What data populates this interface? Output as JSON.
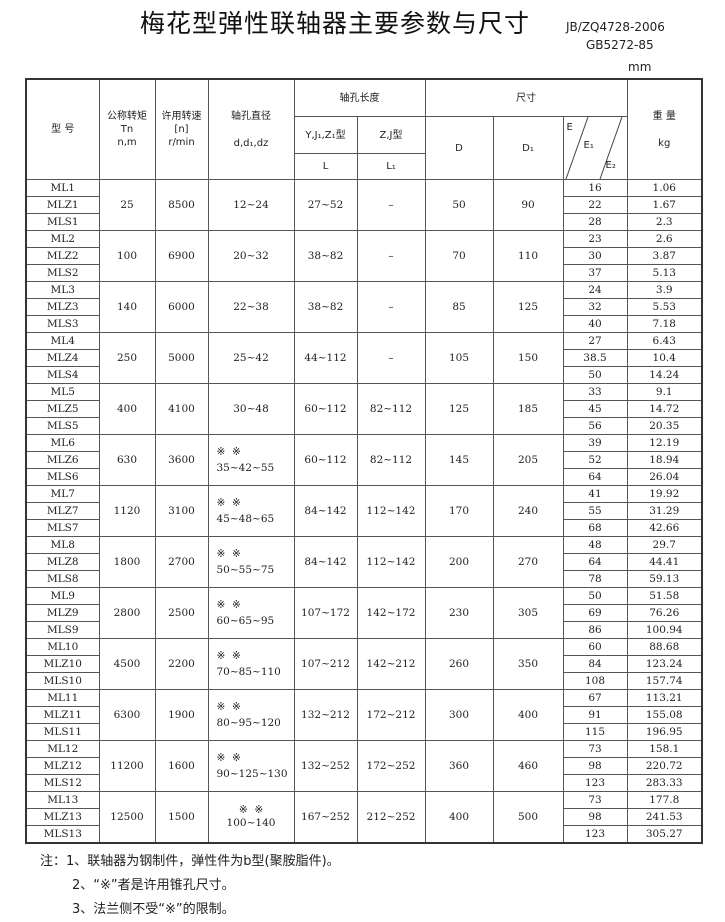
{
  "title": "梅花型弹性联轴器主要参数与尺寸",
  "standards": [
    "JB/ZQ4728-2006",
    "GB5272-85"
  ],
  "unit": "mm",
  "headers": {
    "model": "型 号",
    "torque": [
      "公称转矩",
      "Tn",
      "n,m"
    ],
    "speed": [
      "许用转速",
      "[n]",
      "r/min"
    ],
    "bore_dia": [
      "轴孔直径",
      "d,d₁,dz"
    ],
    "bore_len": "轴孔长度",
    "bore_len_y": "Y,J₁,Z₁型",
    "bore_len_z": "Z,J型",
    "L": "L",
    "L1": "L₁",
    "dims": "尺寸",
    "D": "D",
    "D1": "D₁",
    "E": "E",
    "E1": "E₁",
    "E2": "E₂",
    "weight": [
      "重 量",
      "kg"
    ]
  },
  "groups": [
    {
      "models": [
        "ML1",
        "MLZ1",
        "MLS1"
      ],
      "torque": "25",
      "speed": "8500",
      "marks": "",
      "dia": "12~24",
      "L": "27~52",
      "L1": "–",
      "D": "50",
      "D1": "90",
      "E": [
        "16",
        "22",
        "28"
      ],
      "kg": [
        "1.06",
        "1.67",
        "2.3"
      ]
    },
    {
      "models": [
        "ML2",
        "MLZ2",
        "MLS2"
      ],
      "torque": "100",
      "speed": "6900",
      "marks": "",
      "dia": "20~32",
      "L": "38~82",
      "L1": "–",
      "D": "70",
      "D1": "110",
      "E": [
        "23",
        "30",
        "37"
      ],
      "kg": [
        "2.6",
        "3.87",
        "5.13"
      ]
    },
    {
      "models": [
        "ML3",
        "MLZ3",
        "MLS3"
      ],
      "torque": "140",
      "speed": "6000",
      "marks": "",
      "dia": "22~38",
      "L": "38~82",
      "L1": "–",
      "D": "85",
      "D1": "125",
      "E": [
        "24",
        "32",
        "40"
      ],
      "kg": [
        "3.9",
        "5.53",
        "7.18"
      ]
    },
    {
      "models": [
        "ML4",
        "MLZ4",
        "MLS4"
      ],
      "torque": "250",
      "speed": "5000",
      "marks": "",
      "dia": "25~42",
      "L": "44~112",
      "L1": "–",
      "D": "105",
      "D1": "150",
      "E": [
        "27",
        "38.5",
        "50"
      ],
      "kg": [
        "6.43",
        "10.4",
        "14.24"
      ]
    },
    {
      "models": [
        "ML5",
        "MLZ5",
        "MLS5"
      ],
      "torque": "400",
      "speed": "4100",
      "marks": "",
      "dia": "30~48",
      "L": "60~112",
      "L1": "82~112",
      "D": "125",
      "D1": "185",
      "E": [
        "33",
        "45",
        "56"
      ],
      "kg": [
        "9.1",
        "14.72",
        "20.35"
      ]
    },
    {
      "models": [
        "ML6",
        "MLZ6",
        "MLS6"
      ],
      "torque": "630",
      "speed": "3600",
      "marks": "※  ※",
      "dia": "35~42~55",
      "L": "60~112",
      "L1": "82~112",
      "D": "145",
      "D1": "205",
      "E": [
        "39",
        "52",
        "64"
      ],
      "kg": [
        "12.19",
        "18.94",
        "26.04"
      ]
    },
    {
      "models": [
        "ML7",
        "MLZ7",
        "MLS7"
      ],
      "torque": "1120",
      "speed": "3100",
      "marks": "※  ※",
      "dia": "45~48~65",
      "L": "84~142",
      "L1": "112~142",
      "D": "170",
      "D1": "240",
      "E": [
        "41",
        "55",
        "68"
      ],
      "kg": [
        "19.92",
        "31.29",
        "42.66"
      ]
    },
    {
      "models": [
        "ML8",
        "MLZ8",
        "MLS8"
      ],
      "torque": "1800",
      "speed": "2700",
      "marks": "※  ※",
      "dia": "50~55~75",
      "L": "84~142",
      "L1": "112~142",
      "D": "200",
      "D1": "270",
      "E": [
        "48",
        "64",
        "78"
      ],
      "kg": [
        "29.7",
        "44.41",
        "59.13"
      ]
    },
    {
      "models": [
        "ML9",
        "MLZ9",
        "MLS9"
      ],
      "torque": "2800",
      "speed": "2500",
      "marks": "※  ※",
      "dia": "60~65~95",
      "L": "107~172",
      "L1": "142~172",
      "D": "230",
      "D1": "305",
      "E": [
        "50",
        "69",
        "86"
      ],
      "kg": [
        "51.58",
        "76.26",
        "100.94"
      ]
    },
    {
      "models": [
        "ML10",
        "MLZ10",
        "MLS10"
      ],
      "torque": "4500",
      "speed": "2200",
      "marks": "※  ※",
      "dia": "70~85~110",
      "L": "107~212",
      "L1": "142~212",
      "D": "260",
      "D1": "350",
      "E": [
        "60",
        "84",
        "108"
      ],
      "kg": [
        "88.68",
        "123.24",
        "157.74"
      ]
    },
    {
      "models": [
        "ML11",
        "MLZ11",
        "MLS11"
      ],
      "torque": "6300",
      "speed": "1900",
      "marks": "※  ※",
      "dia": "80~95~120",
      "L": "132~212",
      "L1": "172~212",
      "D": "300",
      "D1": "400",
      "E": [
        "67",
        "91",
        "115"
      ],
      "kg": [
        "113.21",
        "155.08",
        "196.95"
      ]
    },
    {
      "models": [
        "ML12",
        "MLZ12",
        "MLS12"
      ],
      "torque": "11200",
      "speed": "1600",
      "marks": "※  ※",
      "dia": "90~125~130",
      "L": "132~252",
      "L1": "172~252",
      "D": "360",
      "D1": "460",
      "E": [
        "73",
        "98",
        "123"
      ],
      "kg": [
        "158.1",
        "220.72",
        "283.33"
      ]
    },
    {
      "models": [
        "ML13",
        "MLZ13",
        "MLS13"
      ],
      "torque": "12500",
      "speed": "1500",
      "marks": "※  ※",
      "dia": "100~140",
      "L": "167~252",
      "L1": "212~252",
      "D": "400",
      "D1": "500",
      "E": [
        "73",
        "98",
        "123"
      ],
      "kg": [
        "177.8",
        "241.53",
        "305.27"
      ]
    }
  ],
  "notes": [
    "注：1、联轴器为钢制件，弹性件为b型(聚胺脂件)。",
    "2、“※”者是许用锥孔尺寸。",
    "3、法兰侧不受“※”的限制。"
  ]
}
